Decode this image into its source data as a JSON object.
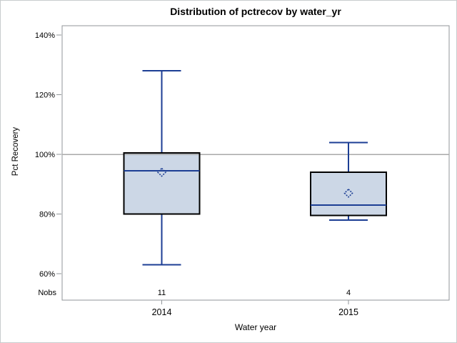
{
  "chart_data": {
    "type": "boxplot",
    "title": "Distribution of pctrecov by water_yr",
    "xlabel": "Water year",
    "ylabel": "Pct Recovery",
    "ylim": [
      51,
      143
    ],
    "y_ticks": [
      {
        "value": 140,
        "label": "140%"
      },
      {
        "value": 120,
        "label": "120%"
      },
      {
        "value": 100,
        "label": "100%"
      },
      {
        "value": 80,
        "label": "80%"
      },
      {
        "value": 60,
        "label": "60%"
      }
    ],
    "reference_line": 100,
    "grid": "single gray reference line at 100%",
    "legend": "none",
    "nobs_label": "Nobs",
    "categories": [
      "2014",
      "2015"
    ],
    "series": [
      {
        "category": "2014",
        "nobs": "11",
        "whisker_low": 63,
        "q1": 80,
        "median": 94.5,
        "q3": 100.5,
        "whisker_high": 128,
        "mean": 94
      },
      {
        "category": "2015",
        "nobs": "4",
        "whisker_low": 78,
        "q1": 79.5,
        "median": 83,
        "q3": 94,
        "whisker_high": 104,
        "mean": 87
      }
    ]
  },
  "colors": {
    "box_fill": "#ccd7e6",
    "box_outline": "#000000",
    "line_blue": "#1c3e94",
    "frame_gray": "#919699",
    "reference_gray": "#a9a9a9",
    "page_border": "#c8cccd",
    "text": "#000000"
  }
}
